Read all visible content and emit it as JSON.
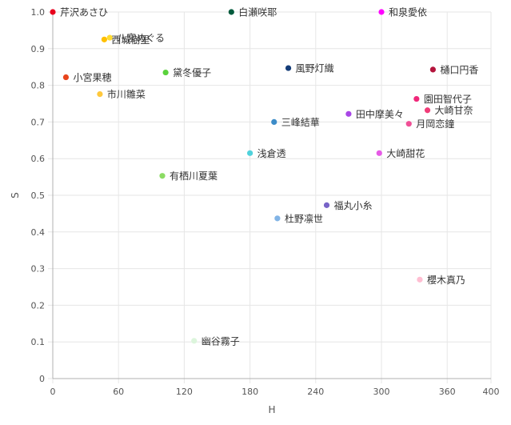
{
  "chart_data": {
    "type": "scatter",
    "xlabel": "H",
    "ylabel": "S",
    "xlim": [
      0,
      400
    ],
    "ylim": [
      0,
      1.0
    ],
    "xticks": [
      "0",
      "60",
      "120",
      "180",
      "240",
      "300",
      "360",
      "400"
    ],
    "yticks": [
      "0",
      "0.1",
      "0.2",
      "0.3",
      "0.4",
      "0.5",
      "0.6",
      "0.7",
      "0.8",
      "0.9",
      "1.0"
    ],
    "grid": true,
    "points": [
      {
        "label": "芹沢あさひ",
        "x": 0,
        "y": 1.0,
        "color": "#e8001c"
      },
      {
        "label": "白瀬咲耶",
        "x": 163,
        "y": 1.0,
        "color": "#005a3c"
      },
      {
        "label": "和泉愛依",
        "x": 300,
        "y": 1.0,
        "color": "#ff00ff"
      },
      {
        "label": "西城樹里",
        "x": 47,
        "y": 0.925,
        "color": "#ffc000"
      },
      {
        "label": "小宮果穂",
        "x": 12,
        "y": 0.822,
        "color": "#e8441c"
      },
      {
        "label": "市川雛菜",
        "x": 43,
        "y": 0.776,
        "color": "#ffc83c"
      },
      {
        "label": "黛冬優子",
        "x": 103,
        "y": 0.835,
        "color": "#5ad23c"
      },
      {
        "label": "風野灯織",
        "x": 215,
        "y": 0.847,
        "color": "#143c78"
      },
      {
        "label": "樋口円香",
        "x": 347,
        "y": 0.843,
        "color": "#b4143c"
      },
      {
        "label": "園田智代子",
        "x": 332,
        "y": 0.763,
        "color": "#f0287a"
      },
      {
        "label": "大崎甘奈",
        "x": 342,
        "y": 0.732,
        "color": "#f03c78"
      },
      {
        "label": "田中摩美々",
        "x": 270,
        "y": 0.722,
        "color": "#a846e6"
      },
      {
        "label": "月岡恋鐘",
        "x": 325,
        "y": 0.695,
        "color": "#f05096"
      },
      {
        "label": "三峰結華",
        "x": 202,
        "y": 0.7,
        "color": "#3c8cc8"
      },
      {
        "label": "浅倉透",
        "x": 180,
        "y": 0.615,
        "color": "#50d2dc"
      },
      {
        "label": "大崎甜花",
        "x": 298,
        "y": 0.615,
        "color": "#e65ae6"
      },
      {
        "label": "有栖川夏葉",
        "x": 100,
        "y": 0.553,
        "color": "#8cdc64"
      },
      {
        "label": "福丸小糸",
        "x": 250,
        "y": 0.473,
        "color": "#7864c8"
      },
      {
        "label": "杜野凛世",
        "x": 205,
        "y": 0.437,
        "color": "#82b4e6"
      },
      {
        "label": "櫻木真乃",
        "x": 335,
        "y": 0.27,
        "color": "#ffbed2"
      },
      {
        "label": "幽谷霧子",
        "x": 129,
        "y": 0.103,
        "color": "#dcf5dc"
      },
      {
        "label": "八宮めぐる",
        "x": 52,
        "y": 0.93,
        "color": "#ffdc32"
      }
    ]
  }
}
